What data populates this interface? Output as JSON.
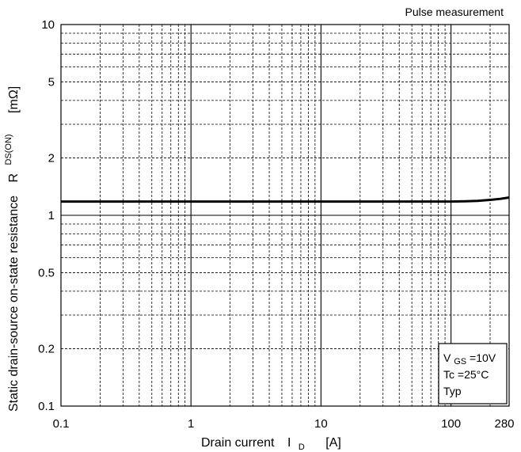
{
  "chart_data": {
    "type": "line",
    "title": "Pulse measurement",
    "x_scale": "log",
    "y_scale": "log",
    "xlim": [
      0.1,
      280
    ],
    "ylim": [
      0.1,
      10
    ],
    "x_tick_labels": [
      "0.1",
      "1",
      "10",
      "100",
      "280"
    ],
    "y_tick_labels": [
      "0.1",
      "0.2",
      "0.5",
      "1",
      "2",
      "5",
      "10"
    ],
    "xlabel": {
      "prefix": "Drain current",
      "symbol": "I",
      "subscript": "D",
      "unit": "[A]"
    },
    "ylabel": {
      "prefix": "Static drain-source on-state resistance",
      "symbol": "R",
      "subscript": "DS(ON)",
      "unit": "[mΩ]"
    },
    "grid": true,
    "series": [
      {
        "color": "#000000",
        "x": [
          0.1,
          0.3,
          1,
          3,
          10,
          30,
          60,
          100,
          130,
          160,
          200,
          240,
          280
        ],
        "y": [
          1.18,
          1.18,
          1.18,
          1.18,
          1.18,
          1.18,
          1.18,
          1.18,
          1.185,
          1.19,
          1.205,
          1.22,
          1.24
        ]
      }
    ],
    "annotation": {
      "line1": {
        "symbol": "V",
        "subscript": "GS",
        "value": "=10V"
      },
      "line2": {
        "symbol": "Tc",
        "value": "=25°C"
      },
      "line3": "Typ"
    }
  }
}
